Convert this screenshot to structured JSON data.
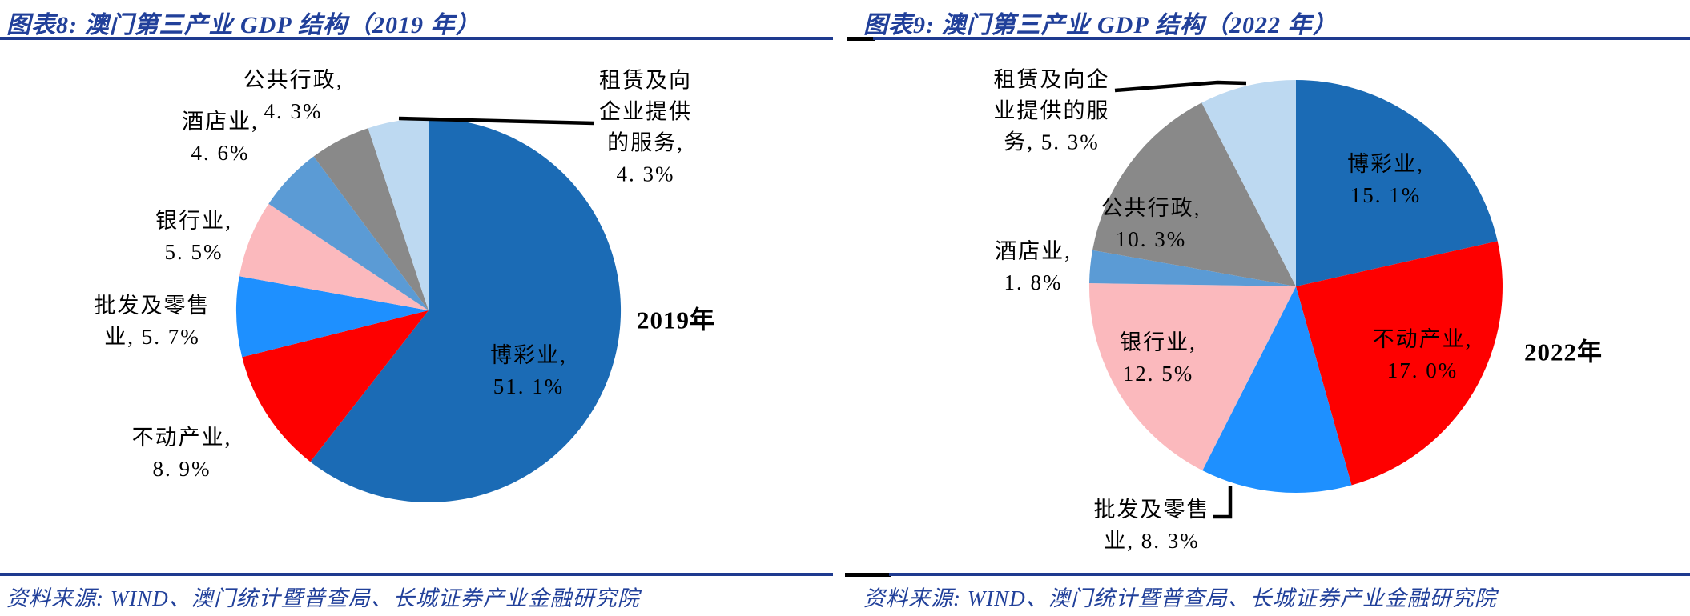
{
  "styles": {
    "accent_navy": "#21409A",
    "rule_navy": "#1E3A8F",
    "label_color": "#000000",
    "leader_line_color": "#000000"
  },
  "chart_data": [
    {
      "type": "pie",
      "figure_title": "图表8: 澳门第三产业 GDP 结构（2019 年）",
      "year_annotation": "2019年",
      "source_line": "资料来源: WIND、澳门统计暨普查局、长城证券产业金融研究院",
      "value_unit": "%",
      "start_angle_deg": 0,
      "direction": "clockwise",
      "note": "slice angles proportional to value / sum of shown values",
      "slices": [
        {
          "id": "gaming",
          "label": "博彩业",
          "value": 51.1,
          "color": "#1B6BB5",
          "data_label": "博彩业,\n51. 1%"
        },
        {
          "id": "real-estate",
          "label": "不动产业",
          "value": 8.9,
          "color": "#FE0000",
          "data_label": "不动产业,\n8. 9%"
        },
        {
          "id": "wholesale-retail",
          "label": "批发及零售业",
          "value": 5.7,
          "color": "#1E90FF",
          "data_label": "批发及零售\n业, 5. 7%"
        },
        {
          "id": "banking",
          "label": "银行业",
          "value": 5.5,
          "color": "#FBB9BD",
          "data_label": "银行业,\n5. 5%"
        },
        {
          "id": "hotels",
          "label": "酒店业",
          "value": 4.6,
          "color": "#5B9BD5",
          "data_label": "酒店业,\n4. 6%"
        },
        {
          "id": "public-admin",
          "label": "公共行政",
          "value": 4.3,
          "color": "#898989",
          "data_label": "公共行政,\n4. 3%"
        },
        {
          "id": "leasing-services",
          "label": "租赁及向企业提供的服务",
          "value": 4.3,
          "color": "#BDD9F1",
          "data_label": "租赁及向\n企业提供\n的服务,\n4. 3%"
        }
      ]
    },
    {
      "type": "pie",
      "figure_title": "图表9: 澳门第三产业 GDP 结构（2022 年）",
      "year_annotation": "2022年",
      "source_line": "资料来源: WIND、澳门统计暨普查局、长城证券产业金融研究院",
      "value_unit": "%",
      "start_angle_deg": 0,
      "direction": "clockwise",
      "note": "slice angles proportional to value / sum of shown values",
      "slices": [
        {
          "id": "gaming",
          "label": "博彩业",
          "value": 15.1,
          "color": "#1B6BB5",
          "data_label": "博彩业,\n15. 1%"
        },
        {
          "id": "real-estate",
          "label": "不动产业",
          "value": 17.0,
          "color": "#FE0000",
          "data_label": "不动产业,\n17. 0%"
        },
        {
          "id": "wholesale-retail",
          "label": "批发及零售业",
          "value": 8.3,
          "color": "#1E90FF",
          "data_label": "批发及零售\n业, 8. 3%"
        },
        {
          "id": "banking",
          "label": "银行业",
          "value": 12.5,
          "color": "#FBB9BD",
          "data_label": "银行业,\n12. 5%"
        },
        {
          "id": "hotels",
          "label": "酒店业",
          "value": 1.8,
          "color": "#5B9BD5",
          "data_label": "酒店业,\n1. 8%"
        },
        {
          "id": "public-admin",
          "label": "公共行政",
          "value": 10.3,
          "color": "#898989",
          "data_label": "公共行政,\n10. 3%"
        },
        {
          "id": "leasing-services",
          "label": "租赁及向企业提供的服务",
          "value": 5.3,
          "color": "#BDD9F1",
          "data_label": "租赁及向企\n业提供的服\n务, 5. 3%"
        }
      ]
    }
  ]
}
